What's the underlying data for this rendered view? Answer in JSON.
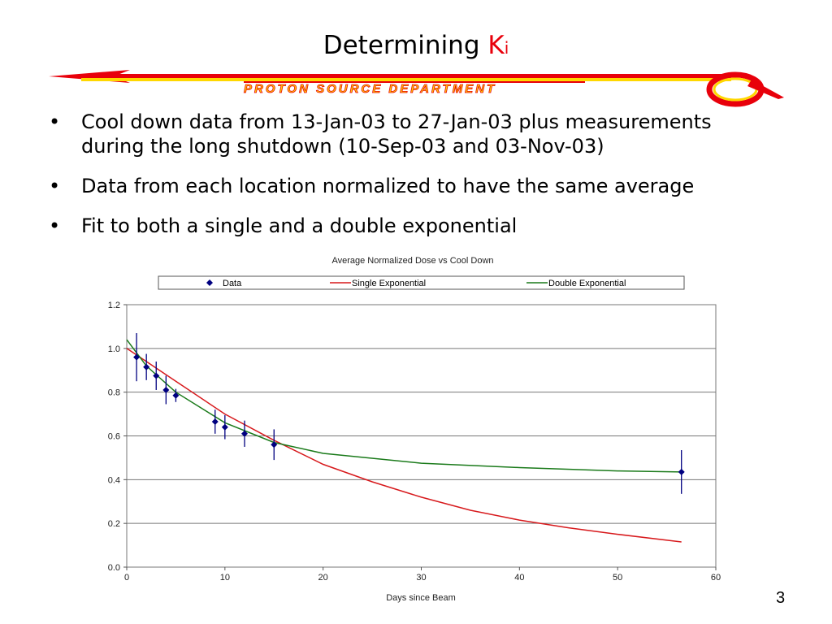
{
  "slide": {
    "title": "Determining ",
    "title_k": "K",
    "title_sub": "i",
    "banner_text": "PROTON SOURCE DEPARTMENT",
    "bullets": [
      "Cool down data from 13-Jan-03 to 27-Jan-03 plus measurements during the long shutdown (10-Sep-03 and 03-Nov-03)",
      "Data from each location normalized to have the same average",
      "Fit to both a single and a double exponential"
    ],
    "bullet_char": "•",
    "page_number": "3"
  },
  "chart_data": {
    "type": "scatter",
    "title": "Average Normalized Dose vs Cool Down",
    "xlabel": "Days since Beam",
    "ylabel": "",
    "xlim": [
      0,
      60
    ],
    "ylim": [
      0,
      1.2
    ],
    "xticks": [
      "0",
      "10",
      "20",
      "30",
      "40",
      "50",
      "60"
    ],
    "yticks": [
      "0.0",
      "0.2",
      "0.4",
      "0.6",
      "0.8",
      "1.0",
      "1.2"
    ],
    "grid": "horizontal",
    "legend_position": "top",
    "series": [
      {
        "name": "Data",
        "kind": "points-with-errorbars",
        "color": "#000080",
        "x": [
          1,
          2,
          3,
          4,
          5,
          9,
          10,
          12,
          15,
          56.5
        ],
        "y": [
          0.96,
          0.915,
          0.875,
          0.81,
          0.785,
          0.665,
          0.64,
          0.61,
          0.56,
          0.435
        ],
        "err": [
          0.11,
          0.06,
          0.065,
          0.065,
          0.03,
          0.055,
          0.055,
          0.06,
          0.07,
          0.1
        ]
      },
      {
        "name": "Single Exponential",
        "kind": "line",
        "color": "#d7191c",
        "x": [
          0,
          5,
          10,
          15,
          20,
          25,
          30,
          35,
          40,
          45,
          50,
          56.5
        ],
        "y": [
          1.0,
          0.85,
          0.7,
          0.58,
          0.47,
          0.39,
          0.32,
          0.26,
          0.215,
          0.18,
          0.15,
          0.115
        ]
      },
      {
        "name": "Double Exponential",
        "kind": "line",
        "color": "#1a7a1a",
        "x": [
          0,
          2,
          5,
          10,
          15,
          20,
          30,
          40,
          50,
          56.5
        ],
        "y": [
          1.04,
          0.92,
          0.8,
          0.66,
          0.57,
          0.52,
          0.475,
          0.455,
          0.44,
          0.435
        ]
      }
    ]
  },
  "colors": {
    "title_accent": "#e8000b",
    "banner_red": "#e8000b",
    "banner_yellow": "#ffd700"
  }
}
